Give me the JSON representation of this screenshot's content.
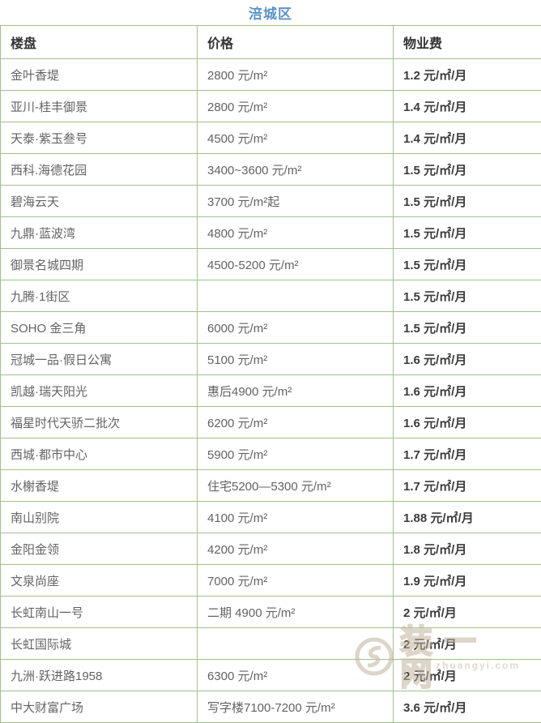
{
  "page_title": "涪城区",
  "chart_data": {
    "type": "table",
    "title": "涪城区",
    "columns": [
      "楼盘",
      "价格",
      "物业费"
    ],
    "rows": [
      [
        "金叶香堤",
        "2800 元/m²",
        "1.2 元/㎡/月"
      ],
      [
        "亚川-桂丰御景",
        "2800 元/m²",
        "1.4 元/㎡/月"
      ],
      [
        "天泰·紫玉叁号",
        "4500 元/m²",
        "1.4 元/㎡/月"
      ],
      [
        "西科.海德花园",
        "3400~3600 元/m²",
        "1.5 元/㎡/月"
      ],
      [
        "碧海云天",
        "3700 元/m²起",
        "1.5 元/㎡/月"
      ],
      [
        "九鼎·蓝波湾",
        "4800 元/m²",
        "1.5 元/㎡/月"
      ],
      [
        "御景名城四期",
        "4500-5200 元/m²",
        "1.5 元/㎡/月"
      ],
      [
        "九腾·1街区",
        "",
        "1.5 元/㎡/月"
      ],
      [
        "SOHO 金三角",
        "6000 元/m²",
        "1.5 元/㎡/月"
      ],
      [
        "冠城一品·假日公寓",
        "5100 元/m²",
        "1.6 元/㎡/月"
      ],
      [
        "凯越·瑞天阳光",
        "惠后4900 元/m²",
        "1.6 元/㎡/月"
      ],
      [
        "福星时代天骄二批次",
        "6200 元/m²",
        "1.6 元/㎡/月"
      ],
      [
        "西城·都市中心",
        "5900 元/m²",
        "1.7 元/㎡/月"
      ],
      [
        "水榭香堤",
        "住宅5200—5300 元/m²",
        "1.7 元/㎡/月"
      ],
      [
        "南山别院",
        "4100 元/m²",
        "1.88 元/㎡/月"
      ],
      [
        "金阳金领",
        "4200 元/m²",
        "1.8 元/㎡/月"
      ],
      [
        "文泉尚座",
        "7000 元/m²",
        "1.9 元/㎡/月"
      ],
      [
        "长虹南山一号",
        "二期 4900 元/m²",
        "2 元/㎡/月"
      ],
      [
        "长虹国际城",
        "",
        "2 元/㎡/月"
      ],
      [
        "九洲·跃进路1958",
        "6300 元/m²",
        "2 元/㎡/月"
      ],
      [
        "中大财富广场",
        "写字楼7100-7200 元/m²",
        "3.6 元/㎡/月"
      ]
    ],
    "layout": {
      "grid": true,
      "header_row": true,
      "columns_cropped_right": true,
      "last_row_cropped_bottom": true
    }
  },
  "watermark": {
    "logo_text": "装一网",
    "sub_text": "zhuangyi.com"
  },
  "colors": {
    "title_blue": "#5b93c7",
    "border_green": "#9ec28c",
    "body_text_gray": "#636363",
    "fee_text_dark": "#3b3b3b",
    "watermark_tan": "#c3b49e"
  }
}
